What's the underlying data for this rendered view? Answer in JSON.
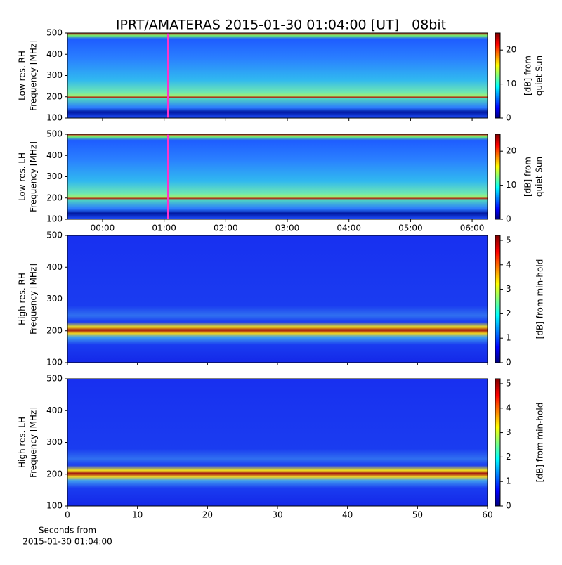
{
  "chart_data": [
    {
      "type": "heatmap",
      "title": "IPRT/AMATERAS 2015-01-30 01:04:00 [UT]   08bit",
      "ylabel": [
        "Low res. RH",
        "Frequency [MHz]"
      ],
      "xlim": [
        -0.57,
        6.25
      ],
      "ylim": [
        100,
        500
      ],
      "yticks": [
        100,
        200,
        300,
        400,
        500
      ],
      "marker_x": 1.0667,
      "marker_color": "#ff33cc",
      "colorbar": {
        "label": [
          "[dB] from",
          "quiet Sun"
        ],
        "lim": [
          0,
          25
        ],
        "ticks": [
          0,
          10,
          20
        ]
      }
    },
    {
      "type": "heatmap",
      "ylabel": [
        "Low res. LH",
        "Frequency [MHz]"
      ],
      "xlim": [
        -0.57,
        6.25
      ],
      "ylim": [
        100,
        500
      ],
      "yticks": [
        100,
        200,
        300,
        400,
        500
      ],
      "xticks": [
        {
          "value": 0,
          "label": "00:00"
        },
        {
          "value": 1,
          "label": "01:00"
        },
        {
          "value": 2,
          "label": "02:00"
        },
        {
          "value": 3,
          "label": "03:00"
        },
        {
          "value": 4,
          "label": "04:00"
        },
        {
          "value": 5,
          "label": "05:00"
        },
        {
          "value": 6,
          "label": "06:00"
        }
      ],
      "marker_x": 1.0667,
      "marker_color": "#ff33cc",
      "colorbar": {
        "label": [
          "[dB] from",
          "quiet Sun"
        ],
        "lim": [
          0,
          25
        ],
        "ticks": [
          0,
          10,
          20
        ]
      }
    },
    {
      "type": "heatmap",
      "ylabel": [
        "High res. RH",
        "Frequency [MHz]"
      ],
      "xlim": [
        0,
        60
      ],
      "ylim": [
        100,
        500
      ],
      "yticks": [
        100,
        200,
        300,
        400,
        500
      ],
      "colorbar": {
        "label": [
          "[dB] from min-hold"
        ],
        "lim": [
          0,
          5.2
        ],
        "ticks": [
          0,
          1,
          2,
          3,
          4,
          5
        ]
      }
    },
    {
      "type": "heatmap",
      "ylabel": [
        "High res. LH",
        "Frequency [MHz]"
      ],
      "xlim": [
        0,
        60
      ],
      "ylim": [
        100,
        500
      ],
      "yticks": [
        100,
        200,
        300,
        400,
        500
      ],
      "xticks": [
        0,
        10,
        20,
        30,
        40,
        50,
        60
      ],
      "xlabel": [
        "Seconds from",
        "2015-01-30 01:04:00"
      ],
      "colorbar": {
        "label": [
          "[dB] from min-hold"
        ],
        "lim": [
          0,
          5.2
        ],
        "ticks": [
          0,
          1,
          2,
          3,
          4,
          5
        ]
      }
    }
  ]
}
